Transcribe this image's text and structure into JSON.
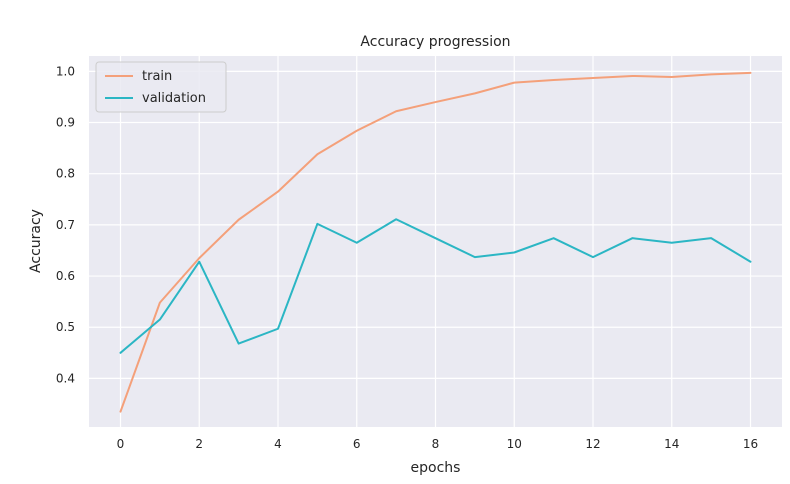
{
  "chart_data": {
    "type": "line",
    "title": "Accuracy progression",
    "xlabel": "epochs",
    "ylabel": "Accuracy",
    "x": [
      0,
      1,
      2,
      3,
      4,
      5,
      6,
      7,
      8,
      9,
      10,
      11,
      12,
      13,
      14,
      15,
      16
    ],
    "xticks": [
      0,
      2,
      4,
      6,
      8,
      10,
      12,
      14,
      16
    ],
    "yticks": [
      0.4,
      0.5,
      0.6,
      0.7,
      0.8,
      0.9,
      1.0
    ],
    "xlim": [
      -0.8,
      16.8
    ],
    "ylim": [
      0.305,
      1.03
    ],
    "grid": true,
    "legend_position": "top-left",
    "background": "#eaeaf2",
    "series": [
      {
        "name": "train",
        "color": "#f4a07a",
        "values": [
          0.335,
          0.548,
          0.635,
          0.71,
          0.765,
          0.838,
          0.884,
          0.922,
          0.94,
          0.957,
          0.978,
          0.983,
          0.987,
          0.991,
          0.989,
          0.994,
          0.997
        ]
      },
      {
        "name": "validation",
        "color": "#2bb6c4",
        "values": [
          0.45,
          0.515,
          0.628,
          0.468,
          0.497,
          0.702,
          0.665,
          0.711,
          0.674,
          0.637,
          0.646,
          0.674,
          0.637,
          0.674,
          0.665,
          0.674,
          0.628
        ]
      }
    ]
  }
}
